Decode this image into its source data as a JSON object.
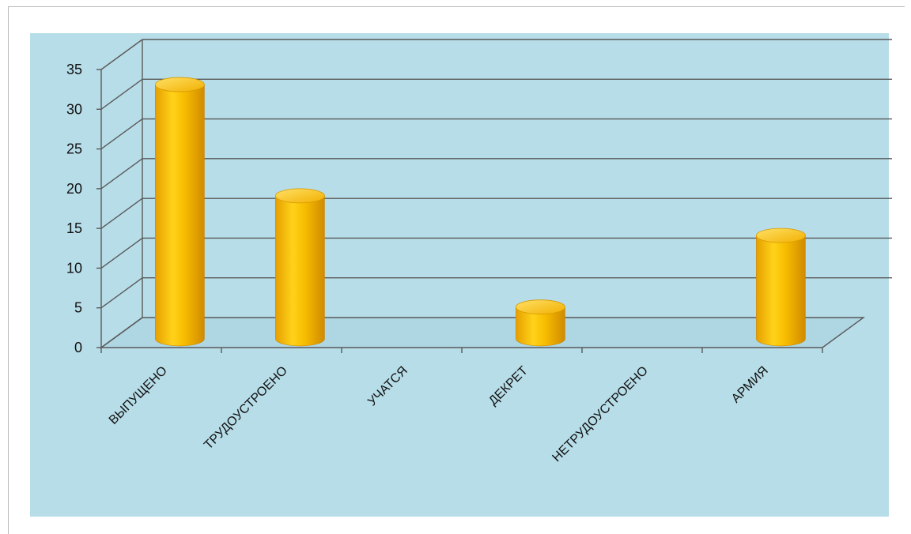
{
  "chart_data": {
    "type": "bar",
    "style": "3d-cylinder",
    "categories": [
      "ВЫПУЩЕНО",
      "ТРУДОУСТРОЕНО",
      "УЧАТСЯ",
      "ДЕКРЕТ",
      "НЕТРУДОУСТРОЕНО",
      "АРМИЯ"
    ],
    "values": [
      32,
      18,
      0,
      4,
      0,
      13
    ],
    "y_ticks": [
      "0",
      "5",
      "10",
      "15",
      "20",
      "25",
      "30",
      "35"
    ],
    "ylim": [
      0,
      35
    ],
    "grid": true,
    "legend": "none",
    "colors": {
      "plot_background": "#b7dde8",
      "bar": "#f5b800",
      "bar_highlight": "#ffdb4d",
      "bar_shadow": "#d48f00",
      "gridline": "#5a5a5a"
    }
  }
}
